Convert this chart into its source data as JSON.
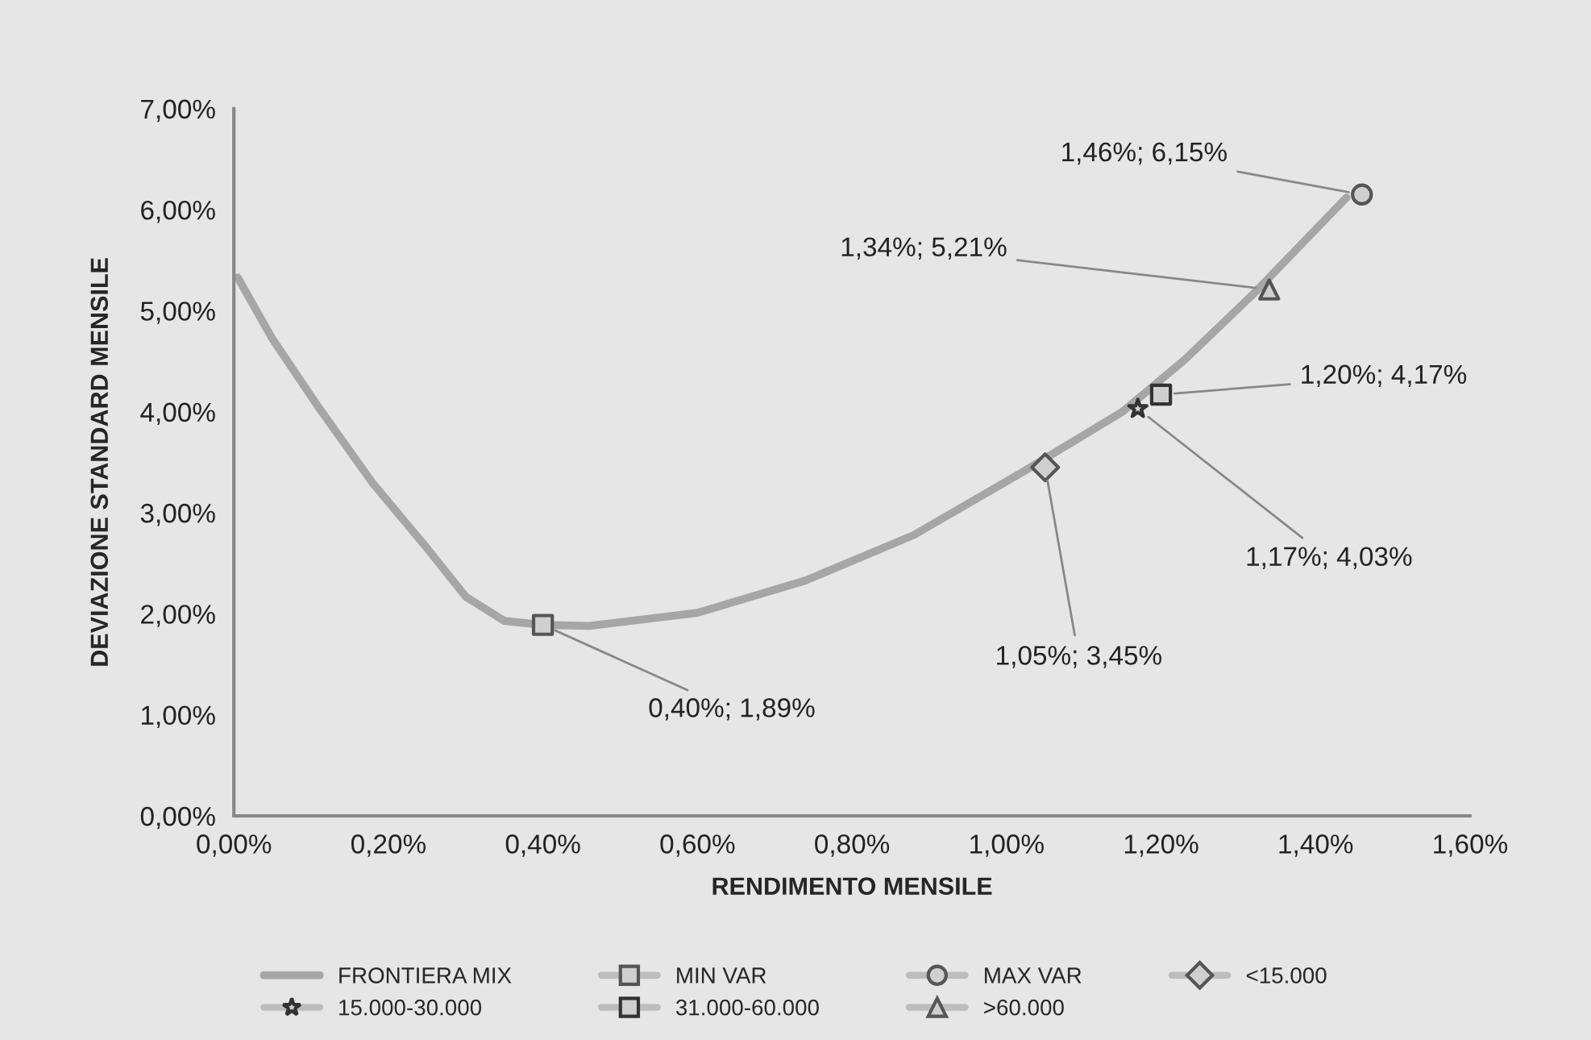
{
  "chart_data": {
    "type": "line",
    "xlabel": "RENDIMENTO MENSILE",
    "ylabel": "DEVIAZIONE STANDARD MENSILE",
    "xlim": [
      0,
      1.6
    ],
    "ylim": [
      0,
      7
    ],
    "xticks": [
      {
        "value": 0,
        "label": "0,00%"
      },
      {
        "value": 0.2,
        "label": "0,20%"
      },
      {
        "value": 0.4,
        "label": "0,40%"
      },
      {
        "value": 0.6,
        "label": "0,60%"
      },
      {
        "value": 0.8,
        "label": "0,80%"
      },
      {
        "value": 1.0,
        "label": "1,00%"
      },
      {
        "value": 1.2,
        "label": "1,20%"
      },
      {
        "value": 1.4,
        "label": "1,40%"
      },
      {
        "value": 1.6,
        "label": "1,60%"
      }
    ],
    "yticks": [
      {
        "value": 0,
        "label": "0,00%"
      },
      {
        "value": 1,
        "label": "1,00%"
      },
      {
        "value": 2,
        "label": "2,00%"
      },
      {
        "value": 3,
        "label": "3,00%"
      },
      {
        "value": 4,
        "label": "4,00%"
      },
      {
        "value": 5,
        "label": "5,00%"
      },
      {
        "value": 6,
        "label": "6,00%"
      },
      {
        "value": 7,
        "label": "7,00%"
      }
    ],
    "grid": false,
    "legend": "bottom",
    "series": [
      {
        "name": "FRONTIERA MIX",
        "color": "#a6a6a6",
        "marker": "none",
        "x": [
          0.005,
          0.05,
          0.11,
          0.18,
          0.25,
          0.3,
          0.35,
          0.4,
          0.46,
          0.6,
          0.74,
          0.88,
          1.02,
          1.15,
          1.23,
          1.32,
          1.44
        ],
        "values": [
          5.33,
          4.72,
          4.04,
          3.29,
          2.65,
          2.17,
          1.93,
          1.89,
          1.88,
          2.01,
          2.33,
          2.78,
          3.4,
          4.0,
          4.51,
          5.17,
          6.12
        ]
      },
      {
        "name": "MIN VAR",
        "type": "scatter",
        "color": "#555555",
        "marker": "square",
        "x": [
          0.4
        ],
        "values": [
          1.89
        ]
      },
      {
        "name": "MAX VAR",
        "type": "scatter",
        "color": "#555555",
        "marker": "circle",
        "x": [
          1.46
        ],
        "values": [
          6.15
        ]
      },
      {
        "name": "<15.000",
        "type": "scatter",
        "color": "#555555",
        "marker": "diamond",
        "x": [
          1.05
        ],
        "values": [
          3.45
        ]
      },
      {
        "name": "15.000-30.000",
        "type": "scatter",
        "color": "#333333",
        "marker": "star",
        "x": [
          1.17
        ],
        "values": [
          4.03
        ]
      },
      {
        "name": "31.000-60.000",
        "type": "scatter",
        "color": "#333333",
        "marker": "square",
        "x": [
          1.2
        ],
        "values": [
          4.17
        ]
      },
      {
        "name": ">60.000",
        "type": "scatter",
        "color": "#555555",
        "marker": "triangle",
        "x": [
          1.34
        ],
        "values": [
          5.21
        ]
      }
    ],
    "annotations": [
      {
        "text": "0,40%; 1,89%",
        "x": 0.4,
        "y": 1.89
      },
      {
        "text": "1,05%; 3,45%",
        "x": 1.05,
        "y": 3.45
      },
      {
        "text": "1,17%; 4,03%",
        "x": 1.17,
        "y": 4.03
      },
      {
        "text": "1,20%; 4,17%",
        "x": 1.2,
        "y": 4.17
      },
      {
        "text": "1,34%; 5,21%",
        "x": 1.34,
        "y": 5.21
      },
      {
        "text": "1,46%; 6,15%",
        "x": 1.46,
        "y": 6.15
      }
    ]
  }
}
